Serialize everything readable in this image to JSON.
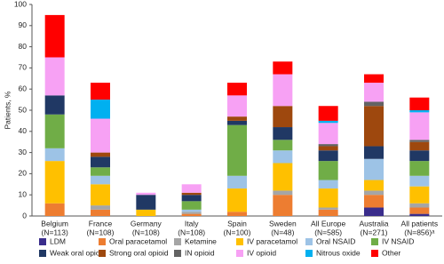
{
  "chart_data": {
    "type": "stacked_bar",
    "y_label": "Patients, %",
    "categories": [
      "Belgium",
      "France",
      "Germany",
      "Italy",
      "Spain",
      "Sweden",
      "All Europe",
      "Australia",
      "All patients"
    ],
    "category_sublabels": [
      "(N=113)",
      "(N=108)",
      "(N=108)",
      "(N=108)",
      "(N=100)",
      "(N=48)",
      "(N=585)",
      "(N=271)",
      "(N=856)ᵃ"
    ],
    "ylim": [
      0,
      100
    ],
    "yticks": [
      0,
      10,
      20,
      30,
      40,
      50,
      60,
      70,
      80,
      90,
      100
    ],
    "series": [
      {
        "name": "LDM",
        "color": "#3a2d8c",
        "values": [
          0,
          0,
          0,
          0,
          0,
          0,
          0,
          4,
          1
        ]
      },
      {
        "name": "Oral paracetamol",
        "color": "#ed7d31",
        "values": [
          6,
          3,
          0,
          1,
          2,
          10,
          3,
          6,
          3
        ]
      },
      {
        "name": "Ketamine",
        "color": "#a5a5a5",
        "values": [
          0,
          2,
          0,
          1,
          0,
          2,
          1,
          2,
          2
        ]
      },
      {
        "name": "IV paracetamol",
        "color": "#ffc000",
        "values": [
          20,
          10,
          3,
          0,
          11,
          13,
          9,
          5,
          8
        ]
      },
      {
        "name": "Oral NSAID",
        "color": "#9dc3e6",
        "values": [
          6,
          4,
          0,
          1,
          6,
          6,
          4,
          10,
          5
        ]
      },
      {
        "name": "IV NSAID",
        "color": "#70ad47",
        "values": [
          16,
          4,
          0,
          4,
          24,
          5,
          9,
          0,
          7
        ]
      },
      {
        "name": "Weak oral opioid",
        "color": "#203864",
        "values": [
          9,
          5,
          7,
          3,
          2,
          6,
          5,
          6,
          5
        ]
      },
      {
        "name": "Strong oral opioid",
        "color": "#9e480e",
        "values": [
          0,
          2,
          0,
          1,
          2,
          10,
          2,
          19,
          4
        ]
      },
      {
        "name": "IN opioid",
        "color": "#636363",
        "values": [
          0,
          0,
          0,
          0,
          0,
          0,
          1,
          2,
          1
        ]
      },
      {
        "name": "IV opioid",
        "color": "#f7a1f4",
        "values": [
          18,
          16,
          1,
          4,
          10,
          15,
          10,
          9,
          13
        ]
      },
      {
        "name": "Nitrous oxide",
        "color": "#00b0f0",
        "values": [
          0,
          9,
          0,
          0,
          0,
          0,
          1,
          0,
          1
        ]
      },
      {
        "name": "Other",
        "color": "#ff0000",
        "values": [
          20,
          8,
          0,
          0,
          6,
          6,
          7,
          4,
          6
        ]
      }
    ]
  }
}
